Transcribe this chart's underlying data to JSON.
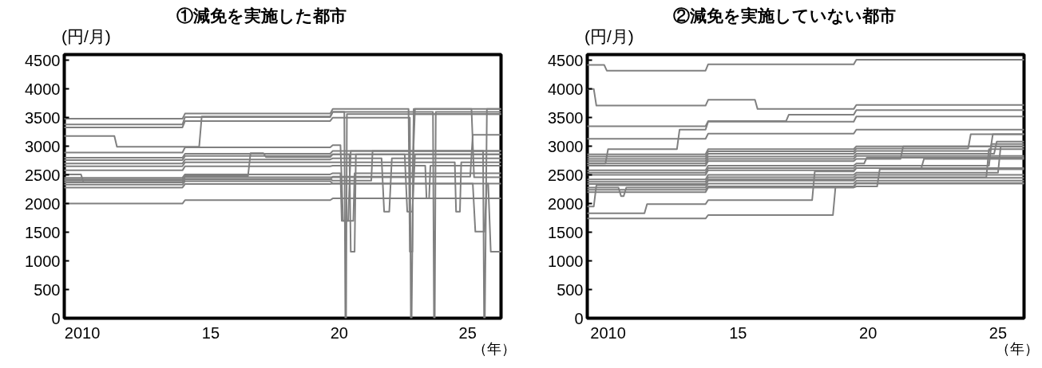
{
  "chart_data": [
    {
      "type": "line",
      "title": "①減免を実施した都市",
      "xlabel": "（年）",
      "ylabel": "(円/月)",
      "xlim": [
        2009.3,
        2026.3
      ],
      "ylim": [
        0,
        4600
      ],
      "xticks": [
        {
          "value": 2010,
          "label": "2010"
        },
        {
          "value": 2015,
          "label": "15"
        },
        {
          "value": 2020,
          "label": "20"
        },
        {
          "value": 2025,
          "label": "25"
        }
      ],
      "yticks": [
        0,
        500,
        1000,
        1500,
        2000,
        2500,
        3000,
        3500,
        4000,
        4500
      ],
      "grid": false,
      "line_style": "solid",
      "series": [
        {
          "color": "#808080",
          "x": [
            2009.3,
            2013.9,
            2014.0,
            2019.65,
            2019.75,
            2022.7,
            2022.75,
            2022.85,
            2022.9,
            2026.3
          ],
          "values": [
            3480,
            3480,
            3570,
            3570,
            3650,
            3650,
            1160,
            1160,
            3650,
            3650
          ]
        },
        {
          "color": "#808080",
          "x": [
            2009.3,
            2013.9,
            2014.0,
            2019.65,
            2019.75,
            2020.2,
            2020.24,
            2020.27,
            2020.3,
            2026.3
          ],
          "values": [
            3380,
            3380,
            3510,
            3510,
            3600,
            3600,
            0,
            0,
            3560,
            3560
          ]
        },
        {
          "color": "#808080",
          "x": [
            2009.3,
            2013.9,
            2014.0,
            2019.65,
            2019.75,
            2022.75,
            2022.79,
            2022.82,
            2022.9,
            2026.3
          ],
          "values": [
            3330,
            3330,
            3440,
            3440,
            3500,
            3500,
            0,
            0,
            3560,
            3560
          ]
        },
        {
          "color": "#808080",
          "x": [
            2009.3,
            2011.25,
            2011.35,
            2014.55,
            2014.65,
            2019.65,
            2019.75,
            2023.65,
            2023.69,
            2023.72,
            2023.76,
            2026.3
          ],
          "values": [
            3180,
            3180,
            2990,
            2990,
            3520,
            3520,
            3600,
            3600,
            0,
            0,
            3600,
            3600
          ]
        },
        {
          "color": "#808080",
          "x": [
            2009.3,
            2013.9,
            2014.0,
            2019.65,
            2019.75,
            2020.05,
            2020.15,
            2020.35,
            2020.45,
            2026.3
          ],
          "values": [
            2890,
            2890,
            2980,
            2980,
            3020,
            3020,
            1700,
            1700,
            2920,
            2920
          ]
        },
        {
          "color": "#808080",
          "x": [
            2009.3,
            2013.9,
            2014.0,
            2019.65,
            2019.75,
            2025.6,
            2025.64,
            2025.67,
            2025.75,
            2026.3
          ],
          "values": [
            2800,
            2800,
            2870,
            2870,
            2920,
            2920,
            0,
            0,
            3650,
            3650
          ]
        },
        {
          "color": "#808080",
          "x": [
            2009.3,
            2013.9,
            2014.0,
            2019.65,
            2019.75,
            2022.55,
            2022.65,
            2022.85,
            2022.95,
            2026.3
          ],
          "values": [
            2760,
            2760,
            2830,
            2830,
            2860,
            2860,
            1860,
            1860,
            2860,
            2860
          ]
        },
        {
          "color": "#808080",
          "x": [
            2009.3,
            2013.9,
            2014.0,
            2019.65,
            2019.75,
            2021.65,
            2021.75,
            2021.95,
            2022.05,
            2026.3
          ],
          "values": [
            2700,
            2700,
            2770,
            2770,
            2790,
            2790,
            1860,
            1860,
            2790,
            2790
          ]
        },
        {
          "color": "#808080",
          "x": [
            2009.3,
            2013.9,
            2014.0,
            2019.65,
            2019.75,
            2024.5,
            2024.55,
            2024.7,
            2024.75,
            2026.3
          ],
          "values": [
            2650,
            2650,
            2720,
            2720,
            2720,
            2720,
            1860,
            1860,
            2720,
            2720
          ]
        },
        {
          "color": "#808080",
          "x": [
            2009.3,
            2013.9,
            2014.0,
            2019.65,
            2019.75,
            2023.35,
            2023.4,
            2023.5,
            2023.55,
            2026.3
          ],
          "values": [
            2580,
            2580,
            2650,
            2650,
            2660,
            2660,
            2090,
            2090,
            2660,
            2660
          ]
        },
        {
          "color": "#808080",
          "x": [
            2009.3,
            2009.95,
            2010.05,
            2013.9,
            2014.0,
            2019.65,
            2019.75,
            2025.1,
            2025.2,
            2026.3
          ],
          "values": [
            2510,
            2510,
            2370,
            2370,
            2420,
            2420,
            2470,
            2470,
            3200,
            3200
          ]
        },
        {
          "color": "#808080",
          "x": [
            2009.3,
            2013.9,
            2014.0,
            2016.45,
            2016.55,
            2017.05,
            2017.15,
            2019.65,
            2019.75,
            2020.4,
            2020.45,
            2020.6,
            2020.65,
            2026.3
          ],
          "values": [
            2420,
            2420,
            2480,
            2480,
            2880,
            2880,
            2810,
            2810,
            2860,
            2860,
            1160,
            1160,
            2860,
            2860
          ]
        },
        {
          "color": "#808080",
          "x": [
            2009.3,
            2013.9,
            2014.0,
            2019.65,
            2019.75,
            2020.05,
            2020.1,
            2020.55,
            2020.6,
            2026.3
          ],
          "values": [
            2450,
            2450,
            2510,
            2510,
            2530,
            2530,
            1700,
            1700,
            2530,
            2530
          ]
        },
        {
          "color": "#808080",
          "x": [
            2009.3,
            2013.9,
            2014.0,
            2019.65,
            2019.75,
            2022.85,
            2022.95,
            2025.15,
            2025.25,
            2026.3
          ],
          "values": [
            2400,
            2400,
            2460,
            2460,
            2460,
            2460,
            3650,
            3650,
            2460,
            2460
          ]
        },
        {
          "color": "#808080",
          "x": [
            2009.3,
            2013.9,
            2014.0,
            2019.65,
            2019.75,
            2021.25,
            2021.3,
            2026.3
          ],
          "values": [
            2370,
            2370,
            2430,
            2430,
            2400,
            2400,
            2920,
            2920
          ]
        },
        {
          "color": "#808080",
          "x": [
            2009.3,
            2013.9,
            2014.0,
            2019.65,
            2019.75,
            2025.2,
            2025.3,
            2025.65,
            2025.75,
            2026.3
          ],
          "values": [
            2330,
            2330,
            2390,
            2390,
            2350,
            2350,
            1510,
            1510,
            2350,
            2350
          ]
        },
        {
          "color": "#808080",
          "x": [
            2009.3,
            2013.9,
            2014.0,
            2019.65,
            2019.75,
            2025.8,
            2025.9,
            2026.3
          ],
          "values": [
            2280,
            2280,
            2340,
            2340,
            2350,
            2350,
            1160,
            1160
          ]
        },
        {
          "color": "#808080",
          "x": [
            2009.3,
            2013.9,
            2014.0,
            2019.65,
            2019.75,
            2026.3
          ],
          "values": [
            2000,
            2000,
            2060,
            2060,
            2090,
            2090
          ]
        }
      ]
    },
    {
      "type": "line",
      "title": "②減免を実施していない都市",
      "xlabel": "（年）",
      "ylabel": "(円/月)",
      "xlim": [
        2009.2,
        2026.0
      ],
      "ylim": [
        0,
        4600
      ],
      "xticks": [
        {
          "value": 2010,
          "label": "2010"
        },
        {
          "value": 2015,
          "label": "15"
        },
        {
          "value": 2020,
          "label": "20"
        },
        {
          "value": 2025,
          "label": "25"
        }
      ],
      "yticks": [
        0,
        500,
        1000,
        1500,
        2000,
        2500,
        3000,
        3500,
        4000,
        4500
      ],
      "grid": false,
      "line_style": "solid",
      "series": [
        {
          "color": "#808080",
          "x": [
            2009.2,
            2009.85,
            2009.95,
            2013.75,
            2013.85,
            2019.45,
            2019.55,
            2026.0
          ],
          "values": [
            4420,
            4420,
            4320,
            4320,
            4430,
            4430,
            4510,
            4510
          ]
        },
        {
          "color": "#808080",
          "x": [
            2009.2,
            2009.45,
            2009.55,
            2013.75,
            2013.85,
            2015.65,
            2015.75,
            2019.45,
            2019.55,
            2026.0
          ],
          "values": [
            4000,
            4000,
            3710,
            3710,
            3810,
            3810,
            3650,
            3650,
            3720,
            3720
          ]
        },
        {
          "color": "#808080",
          "x": [
            2009.2,
            2013.75,
            2013.85,
            2016.85,
            2016.95,
            2019.45,
            2019.55,
            2026.0
          ],
          "values": [
            3350,
            3350,
            3440,
            3440,
            3550,
            3550,
            3630,
            3630
          ]
        },
        {
          "color": "#808080",
          "x": [
            2009.2,
            2009.9,
            2010.0,
            2012.65,
            2012.75,
            2013.75,
            2013.85,
            2019.45,
            2019.55,
            2026.0
          ],
          "values": [
            2700,
            2700,
            2950,
            2950,
            3290,
            3290,
            3430,
            3430,
            3520,
            3520
          ]
        },
        {
          "color": "#808080",
          "x": [
            2009.2,
            2013.75,
            2013.85,
            2019.45,
            2019.55,
            2026.0
          ],
          "values": [
            3130,
            3130,
            3220,
            3220,
            3290,
            3290
          ]
        },
        {
          "color": "#808080",
          "x": [
            2009.2,
            2013.75,
            2013.85,
            2019.45,
            2019.55,
            2026.0
          ],
          "values": [
            2860,
            2860,
            2950,
            2950,
            3000,
            3000
          ]
        },
        {
          "color": "#808080",
          "x": [
            2009.2,
            2013.75,
            2013.85,
            2019.45,
            2019.55,
            2023.85,
            2023.95,
            2026.0
          ],
          "values": [
            2820,
            2820,
            2910,
            2910,
            2960,
            2960,
            3210,
            3210
          ]
        },
        {
          "color": "#808080",
          "x": [
            2009.2,
            2013.75,
            2013.85,
            2019.45,
            2019.55,
            2024.7,
            2024.8,
            2026.0
          ],
          "values": [
            2780,
            2780,
            2870,
            2870,
            2920,
            2920,
            3210,
            3210
          ]
        },
        {
          "color": "#808080",
          "x": [
            2009.2,
            2013.75,
            2013.85,
            2019.45,
            2019.55,
            2024.85,
            2024.95,
            2026.0
          ],
          "values": [
            2740,
            2740,
            2820,
            2820,
            2870,
            2870,
            3080,
            3080
          ]
        },
        {
          "color": "#808080",
          "x": [
            2009.2,
            2013.75,
            2013.85,
            2019.45,
            2019.55,
            2026.0
          ],
          "values": [
            2700,
            2700,
            2780,
            2780,
            2830,
            2830
          ]
        },
        {
          "color": "#808080",
          "x": [
            2009.2,
            2013.75,
            2013.85,
            2019.45,
            2019.55,
            2021.25,
            2021.35,
            2026.0
          ],
          "values": [
            2660,
            2660,
            2740,
            2740,
            2780,
            2780,
            3000,
            3000
          ]
        },
        {
          "color": "#808080",
          "x": [
            2009.2,
            2013.75,
            2013.85,
            2019.45,
            2019.55,
            2019.85,
            2019.95,
            2026.0
          ],
          "values": [
            2580,
            2580,
            2660,
            2660,
            2700,
            2700,
            2800,
            2800
          ]
        },
        {
          "color": "#808080",
          "x": [
            2009.2,
            2013.75,
            2013.85,
            2019.45,
            2019.55,
            2024.65,
            2024.75,
            2026.0
          ],
          "values": [
            2540,
            2540,
            2620,
            2620,
            2660,
            2660,
            3040,
            3040
          ]
        },
        {
          "color": "#808080",
          "x": [
            2009.2,
            2013.75,
            2013.85,
            2019.45,
            2019.55,
            2022.05,
            2022.15,
            2026.0
          ],
          "values": [
            2500,
            2500,
            2580,
            2580,
            2620,
            2620,
            2780,
            2780
          ]
        },
        {
          "color": "#808080",
          "x": [
            2009.2,
            2013.75,
            2013.85,
            2019.45,
            2019.55,
            2025.0,
            2025.1,
            2026.0
          ],
          "values": [
            2420,
            2420,
            2500,
            2500,
            2540,
            2540,
            2990,
            2990
          ]
        },
        {
          "color": "#808080",
          "x": [
            2009.2,
            2013.75,
            2013.85,
            2019.45,
            2019.55,
            2026.0
          ],
          "values": [
            2380,
            2380,
            2460,
            2460,
            2500,
            2500
          ]
        },
        {
          "color": "#808080",
          "x": [
            2009.2,
            2013.75,
            2013.85,
            2019.45,
            2019.55,
            2024.55,
            2024.65,
            2026.0
          ],
          "values": [
            2340,
            2340,
            2420,
            2420,
            2460,
            2460,
            2950,
            2950
          ]
        },
        {
          "color": "#808080",
          "x": [
            2009.2,
            2010.4,
            2010.5,
            2010.6,
            2010.7,
            2013.75,
            2013.85,
            2019.45,
            2019.55,
            2026.0
          ],
          "values": [
            2280,
            2280,
            2130,
            2130,
            2280,
            2280,
            2350,
            2350,
            2400,
            2400
          ]
        },
        {
          "color": "#808080",
          "x": [
            2009.2,
            2013.75,
            2013.85,
            2019.45,
            2019.55,
            2026.0
          ],
          "values": [
            2240,
            2240,
            2300,
            2300,
            2350,
            2350
          ]
        },
        {
          "color": "#808080",
          "x": [
            2009.2,
            2013.75,
            2013.85,
            2019.45,
            2019.55,
            2020.35,
            2020.45,
            2026.0
          ],
          "values": [
            2200,
            2200,
            2280,
            2280,
            2300,
            2300,
            2600,
            2600
          ]
        },
        {
          "color": "#808080",
          "x": [
            2009.2,
            2009.45,
            2009.55,
            2013.75,
            2013.85,
            2019.45,
            2019.55,
            2026.0
          ],
          "values": [
            1950,
            1950,
            2320,
            2320,
            2400,
            2400,
            2450,
            2450
          ]
        },
        {
          "color": "#808080",
          "x": [
            2009.2,
            2011.4,
            2011.5,
            2013.75,
            2013.85,
            2017.85,
            2017.95,
            2019.45,
            2019.55,
            2026.0
          ],
          "values": [
            1830,
            1830,
            1990,
            1990,
            2060,
            2060,
            2560,
            2560,
            2620,
            2620
          ]
        },
        {
          "color": "#808080",
          "x": [
            2009.2,
            2013.75,
            2013.85,
            2018.65,
            2018.75,
            2019.45,
            2019.55,
            2026.0
          ],
          "values": [
            1740,
            1740,
            1800,
            1800,
            2300,
            2300,
            2360,
            2360
          ]
        }
      ]
    }
  ]
}
